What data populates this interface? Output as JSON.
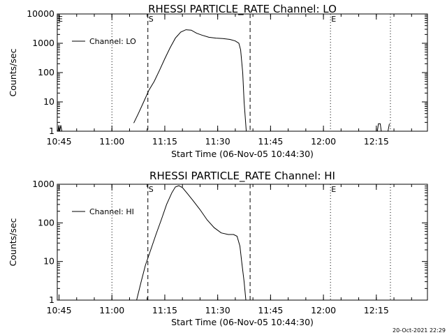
{
  "footer": {
    "timestamp": "20-Oct-2021 22:29"
  },
  "chart_data": [
    {
      "type": "line",
      "title": "RHESSI PARTICLE_RATE Channel: LO",
      "xlabel": "Start Time (06-Nov-05 10:44:30)",
      "ylabel": "Counts/sec",
      "x_ticks": [
        "10:45",
        "11:00",
        "11:15",
        "11:30",
        "11:45",
        "12:00",
        "12:15"
      ],
      "y_ticks": [
        "1",
        "10",
        "100",
        "1000",
        "10000"
      ],
      "yscale": "log",
      "ylim": [
        1,
        10000
      ],
      "xlim_min_after_start": [
        0,
        105
      ],
      "markers": [
        {
          "label": "E",
          "t": 0,
          "style": "dotted",
          "labeled": true
        },
        {
          "label": "",
          "t": 15.5,
          "style": "dotted",
          "labeled": false
        },
        {
          "label": "S",
          "t": 25.7,
          "style": "dashed",
          "labeled": true
        },
        {
          "label": "",
          "t": 54.7,
          "style": "dashed",
          "labeled": false
        },
        {
          "label": "E",
          "t": 77.5,
          "style": "dotted",
          "labeled": true
        },
        {
          "label": "",
          "t": 94.5,
          "style": "dotted",
          "labeled": false
        }
      ],
      "series": [
        {
          "name": "Channel: LO",
          "segments": [
            [
              [
                0.2,
                1
              ],
              [
                0.45,
                1.6
              ],
              [
                0.7,
                1
              ],
              [
                1.0,
                1.6
              ],
              [
                1.3,
                1
              ]
            ],
            [
              [
                21.7,
                1.9
              ],
              [
                23.0,
                4
              ],
              [
                24.5,
                10
              ],
              [
                26.0,
                25
              ],
              [
                27.5,
                50
              ],
              [
                29.0,
                120
              ],
              [
                30.5,
                300
              ],
              [
                32.0,
                700
              ],
              [
                33.5,
                1500
              ],
              [
                35.0,
                2400
              ],
              [
                36.5,
                2900
              ],
              [
                38.0,
                2800
              ],
              [
                39.5,
                2200
              ],
              [
                41.0,
                1900
              ],
              [
                43.0,
                1600
              ],
              [
                45.0,
                1500
              ],
              [
                47.0,
                1450
              ],
              [
                49.0,
                1350
              ],
              [
                50.5,
                1200
              ],
              [
                51.5,
                1000
              ],
              [
                52.0,
                600
              ],
              [
                52.6,
                100
              ],
              [
                53.0,
                10
              ],
              [
                53.6,
                1
              ]
            ],
            [
              [
                90.8,
                1
              ],
              [
                91.1,
                1.8
              ],
              [
                91.6,
                1.8
              ],
              [
                91.9,
                1
              ]
            ],
            [
              [
                93.8,
                1
              ],
              [
                94.2,
                1.8
              ]
            ]
          ]
        }
      ]
    },
    {
      "type": "line",
      "title": "RHESSI PARTICLE_RATE Channel: HI",
      "xlabel": "Start Time (06-Nov-05 10:44:30)",
      "ylabel": "Counts/sec",
      "x_ticks": [
        "10:45",
        "11:00",
        "11:15",
        "11:30",
        "11:45",
        "12:00",
        "12:15"
      ],
      "y_ticks": [
        "1",
        "10",
        "100",
        "1000"
      ],
      "yscale": "log",
      "ylim": [
        1,
        1000
      ],
      "xlim_min_after_start": [
        0,
        105
      ],
      "markers": [
        {
          "label": "",
          "t": 15.5,
          "style": "dotted",
          "labeled": false
        },
        {
          "label": "S",
          "t": 25.7,
          "style": "dashed",
          "labeled": true
        },
        {
          "label": "",
          "t": 54.7,
          "style": "dashed",
          "labeled": false
        },
        {
          "label": "E",
          "t": 77.5,
          "style": "dotted",
          "labeled": true
        },
        {
          "label": "",
          "t": 94.5,
          "style": "dotted",
          "labeled": false
        }
      ],
      "series": [
        {
          "name": "Channel: HI",
          "segments": [
            [
              [
                22.5,
                1
              ],
              [
                23.8,
                3
              ],
              [
                25.0,
                8
              ],
              [
                26.5,
                20
              ],
              [
                28.0,
                50
              ],
              [
                29.5,
                120
              ],
              [
                31.0,
                300
              ],
              [
                32.5,
                600
              ],
              [
                33.5,
                850
              ],
              [
                34.5,
                920
              ],
              [
                35.5,
                820
              ],
              [
                37.0,
                560
              ],
              [
                38.5,
                380
              ],
              [
                40.5,
                220
              ],
              [
                42.5,
                120
              ],
              [
                44.5,
                75
              ],
              [
                46.5,
                55
              ],
              [
                48.5,
                50
              ],
              [
                50.0,
                50
              ],
              [
                51.0,
                45
              ],
              [
                51.8,
                25
              ],
              [
                52.3,
                10
              ],
              [
                53.0,
                3
              ],
              [
                53.5,
                1
              ]
            ]
          ]
        }
      ]
    }
  ]
}
